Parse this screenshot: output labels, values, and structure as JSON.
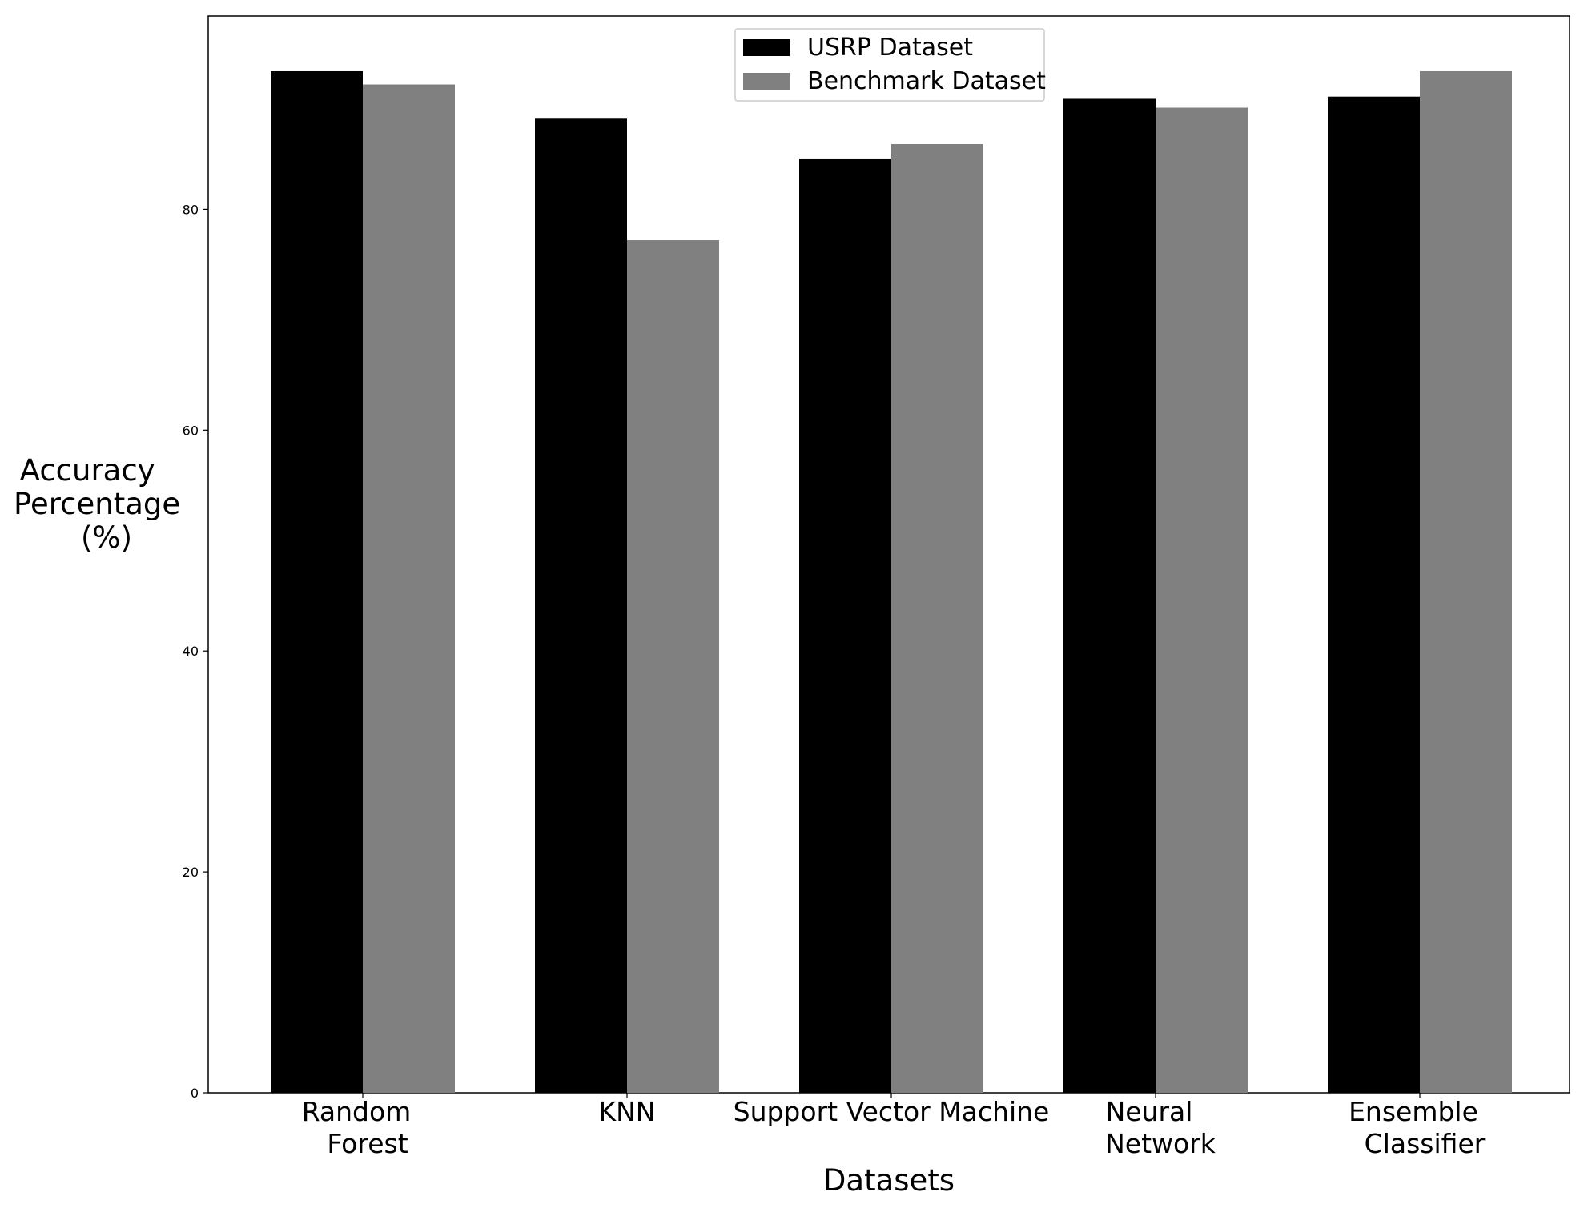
{
  "chart_data": {
    "type": "bar",
    "title": "",
    "xlabel": "Datasets",
    "ylabel_lines": [
      "Accuracy",
      "Percentage",
      "(%)"
    ],
    "categories": [
      [
        "Random",
        "Forest"
      ],
      [
        "KNN"
      ],
      [
        "Support Vector Machine"
      ],
      [
        "Neural",
        "Network"
      ],
      [
        "Ensemble",
        "Classifier"
      ]
    ],
    "series": [
      {
        "name": "USRP Dataset",
        "color": "#000000",
        "values": [
          92.5,
          88.2,
          84.6,
          90.0,
          90.2
        ]
      },
      {
        "name": "Benchmark Dataset",
        "color": "#808080",
        "values": [
          91.3,
          77.2,
          85.9,
          89.2,
          92.5
        ]
      }
    ],
    "ylim": [
      0,
      97.5
    ],
    "yticks": [
      0,
      20,
      40,
      60,
      80
    ],
    "grid": false,
    "legend_position": "top-center"
  }
}
